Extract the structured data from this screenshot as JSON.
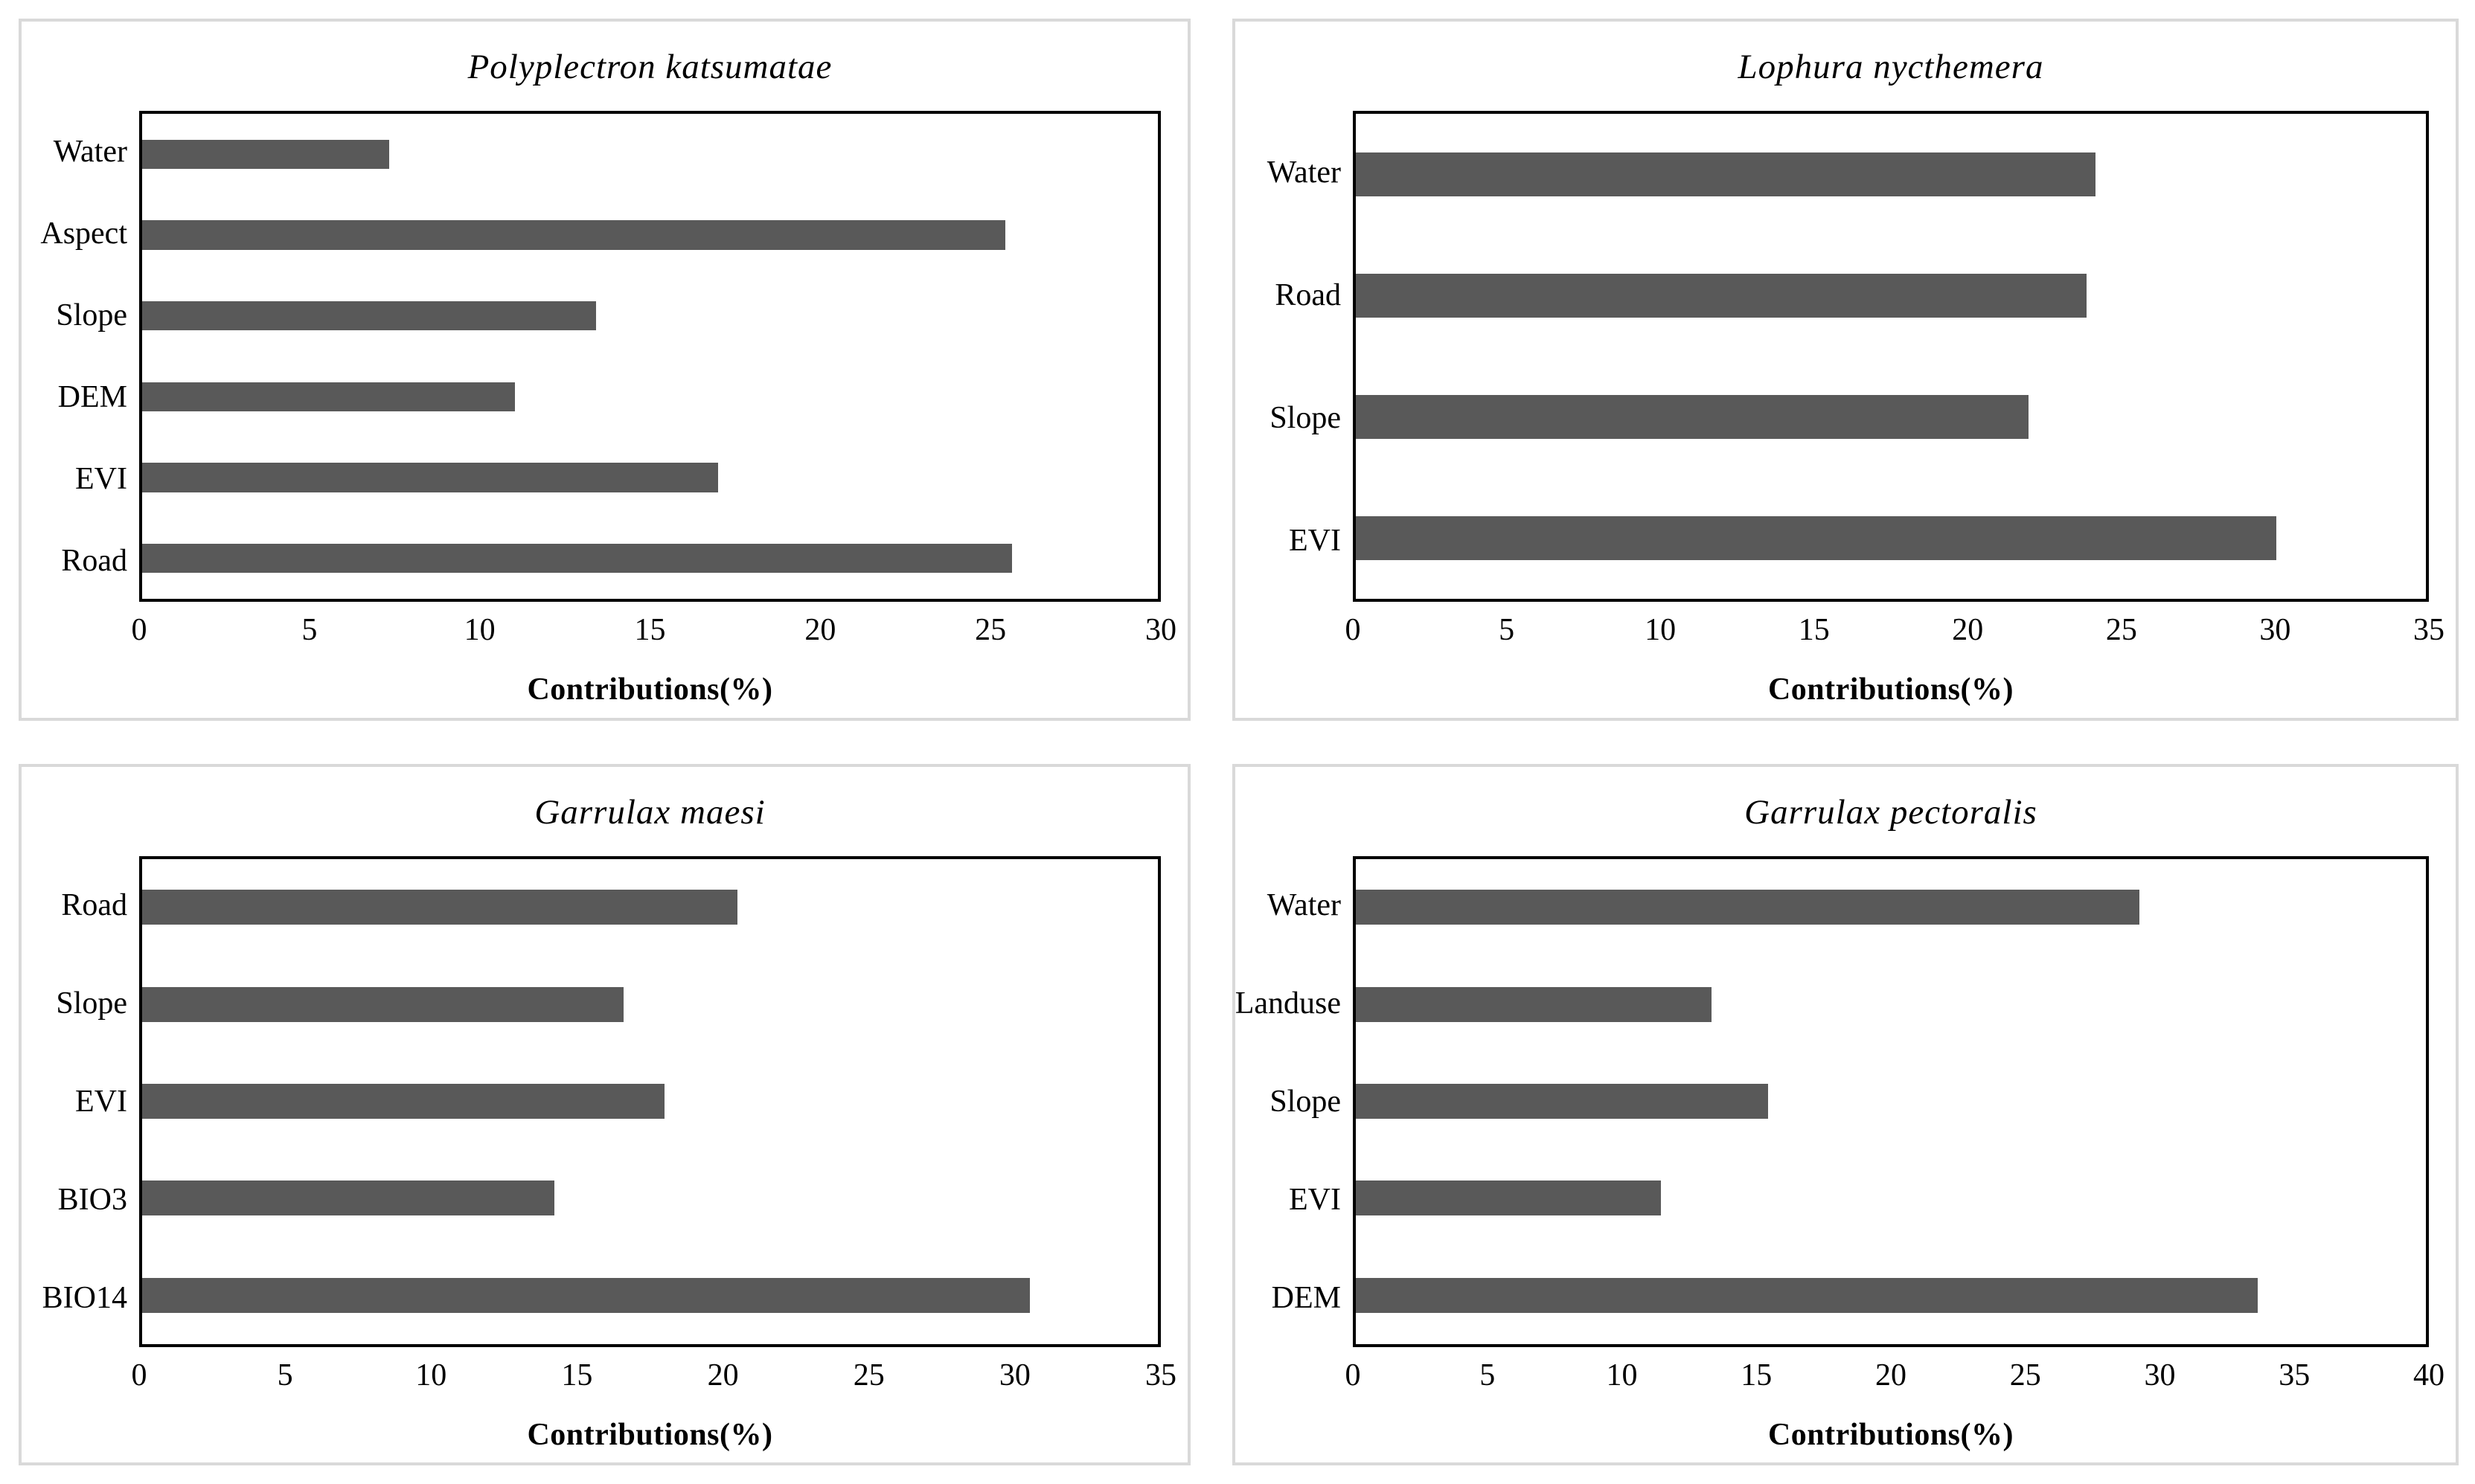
{
  "figure": {
    "panel_count": 4,
    "bar_color": "#595959",
    "frame_color": "#000000",
    "panel_border_color": "#d9d9d9",
    "background_color": "#ffffff"
  },
  "chart_data": [
    {
      "type": "bar",
      "orientation": "horizontal",
      "title": "Polyplectron katsumatae",
      "xlabel": "Contributions(%)",
      "ylabel": "",
      "categories": [
        "Water",
        "Aspect",
        "Slope",
        "DEM",
        "EVI",
        "Road"
      ],
      "values": [
        7.3,
        25.5,
        13.4,
        11.0,
        17.0,
        25.7
      ],
      "xlim": [
        0,
        30
      ],
      "xticks": [
        0,
        5,
        10,
        15,
        20,
        25,
        30
      ],
      "grid": false,
      "legend": "none"
    },
    {
      "type": "bar",
      "orientation": "horizontal",
      "title": "Lophura nycthemera",
      "xlabel": "Contributions(%)",
      "ylabel": "",
      "categories": [
        "Water",
        "Road",
        "Slope",
        "EVI"
      ],
      "values": [
        24.2,
        23.9,
        22.0,
        30.1
      ],
      "xlim": [
        0,
        35
      ],
      "xticks": [
        0,
        5,
        10,
        15,
        20,
        25,
        30,
        35
      ],
      "grid": false,
      "legend": "none"
    },
    {
      "type": "bar",
      "orientation": "horizontal",
      "title": "Garrulax maesi",
      "xlabel": "Contributions(%)",
      "ylabel": "",
      "categories": [
        "Road",
        "Slope",
        "EVI",
        "BIO3",
        "BIO14"
      ],
      "values": [
        20.5,
        16.6,
        18.0,
        14.2,
        30.6
      ],
      "xlim": [
        0,
        35
      ],
      "xticks": [
        0,
        5,
        10,
        15,
        20,
        25,
        30,
        35
      ],
      "grid": false,
      "legend": "none"
    },
    {
      "type": "bar",
      "orientation": "horizontal",
      "title": "Garrulax pectoralis",
      "xlabel": "Contributions(%)",
      "ylabel": "",
      "categories": [
        "Water",
        "Landuse",
        "Slope",
        "EVI",
        "DEM"
      ],
      "values": [
        29.3,
        13.3,
        15.4,
        11.4,
        33.7
      ],
      "xlim": [
        0,
        40
      ],
      "xticks": [
        0,
        5,
        10,
        15,
        20,
        25,
        30,
        35,
        40
      ],
      "grid": false,
      "legend": "none"
    }
  ]
}
